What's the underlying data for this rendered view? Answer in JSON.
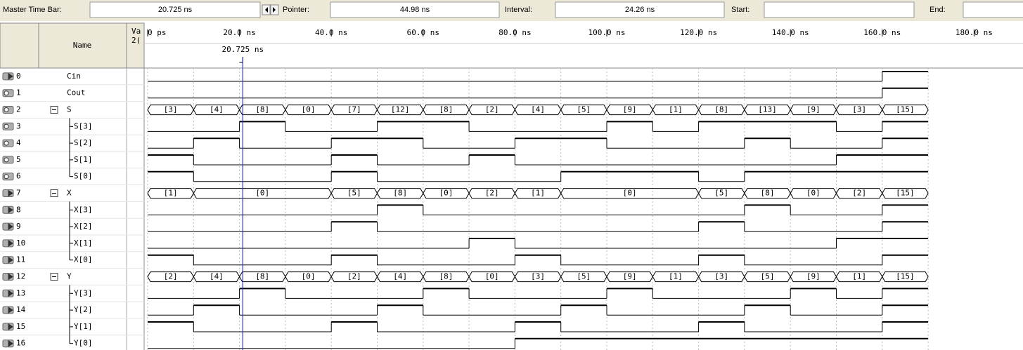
{
  "toolbar": {
    "master_label": "Master Time Bar:",
    "master_value": "20.725 ns",
    "pointer_label": "Pointer:",
    "pointer_value": "44.98 ns",
    "interval_label": "Interval:",
    "interval_value": "24.26 ns",
    "start_label": "Start:",
    "end_label": "End:"
  },
  "header": {
    "name": "Name",
    "value_1": "Va",
    "value_2": "2("
  },
  "timeline": {
    "ticks": [
      {
        "value": 0,
        "label": "0 ps"
      },
      {
        "value": 20,
        "label": "20.0 ns"
      },
      {
        "value": 40,
        "label": "40.0 ns"
      },
      {
        "value": 60,
        "label": "60.0 ns"
      },
      {
        "value": 80,
        "label": "80.0 ns"
      },
      {
        "value": 100,
        "label": "100.0 ns"
      },
      {
        "value": 120,
        "label": "120.0 ns"
      },
      {
        "value": 140,
        "label": "140.0 ns"
      },
      {
        "value": 160,
        "label": "160.0 ns"
      },
      {
        "value": 180,
        "label": "180.0 ns"
      }
    ],
    "cursor": {
      "value": 20.725,
      "label": "20.725 ns"
    },
    "edges": [
      0,
      10,
      20,
      30,
      40,
      50,
      60,
      70,
      80,
      90,
      100,
      110,
      120,
      130,
      140,
      150,
      160,
      170
    ]
  },
  "signals": [
    {
      "index": 0,
      "kind": "in",
      "name": "Cin",
      "values": [
        0,
        0,
        0,
        0,
        0,
        0,
        0,
        0,
        0,
        0,
        0,
        0,
        0,
        0,
        0,
        0,
        1
      ]
    },
    {
      "index": 1,
      "kind": "out",
      "name": "Cout",
      "values": [
        0,
        0,
        0,
        0,
        0,
        0,
        0,
        0,
        0,
        0,
        0,
        0,
        0,
        0,
        0,
        0,
        1
      ]
    },
    {
      "index": 2,
      "kind": "out",
      "name": "S",
      "group": true,
      "labels": [
        "[3]",
        "[4]",
        "[8]",
        "[0]",
        "[7]",
        "[12]",
        "[8]",
        "[2]",
        "[4]",
        "[5]",
        "[9]",
        "[1]",
        "[8]",
        "[13]",
        "[9]",
        "[3]",
        "[15]"
      ]
    },
    {
      "index": 3,
      "kind": "out",
      "name": "S[3]",
      "child": "mid",
      "values": [
        0,
        0,
        1,
        0,
        0,
        1,
        1,
        0,
        0,
        0,
        1,
        0,
        1,
        1,
        1,
        0,
        1
      ]
    },
    {
      "index": 4,
      "kind": "out",
      "name": "S[2]",
      "child": "mid",
      "values": [
        0,
        1,
        0,
        0,
        1,
        1,
        0,
        0,
        1,
        1,
        0,
        0,
        0,
        1,
        0,
        0,
        1
      ]
    },
    {
      "index": 5,
      "kind": "out",
      "name": "S[1]",
      "child": "mid",
      "values": [
        1,
        0,
        0,
        0,
        1,
        0,
        0,
        1,
        0,
        0,
        0,
        0,
        0,
        0,
        0,
        1,
        1
      ]
    },
    {
      "index": 6,
      "kind": "out",
      "name": "S[0]",
      "child": "last",
      "values": [
        1,
        0,
        0,
        0,
        1,
        0,
        0,
        0,
        0,
        1,
        1,
        1,
        0,
        1,
        1,
        1,
        1
      ]
    },
    {
      "index": 7,
      "kind": "in",
      "name": "X",
      "group": true,
      "labels": [
        "[1]",
        "[0]",
        null,
        null,
        "[5]",
        "[8]",
        "[0]",
        "[2]",
        "[1]",
        "[0]",
        null,
        null,
        "[5]",
        "[8]",
        "[0]",
        "[2]",
        "[15]"
      ]
    },
    {
      "index": 8,
      "kind": "in",
      "name": "X[3]",
      "child": "mid",
      "values": [
        0,
        0,
        0,
        0,
        0,
        1,
        0,
        0,
        0,
        0,
        0,
        0,
        0,
        1,
        0,
        0,
        1
      ]
    },
    {
      "index": 9,
      "kind": "in",
      "name": "X[2]",
      "child": "mid",
      "values": [
        0,
        0,
        0,
        0,
        1,
        0,
        0,
        0,
        0,
        0,
        0,
        0,
        1,
        0,
        0,
        0,
        1
      ]
    },
    {
      "index": 10,
      "kind": "in",
      "name": "X[1]",
      "child": "mid",
      "values": [
        0,
        0,
        0,
        0,
        0,
        0,
        0,
        1,
        0,
        0,
        0,
        0,
        0,
        0,
        0,
        1,
        1
      ]
    },
    {
      "index": 11,
      "kind": "in",
      "name": "X[0]",
      "child": "last",
      "values": [
        1,
        0,
        0,
        0,
        1,
        0,
        0,
        0,
        1,
        0,
        0,
        0,
        1,
        0,
        0,
        0,
        1
      ]
    },
    {
      "index": 12,
      "kind": "in",
      "name": "Y",
      "group": true,
      "labels": [
        "[2]",
        "[4]",
        "[8]",
        "[0]",
        "[2]",
        "[4]",
        "[8]",
        "[0]",
        "[3]",
        "[5]",
        "[9]",
        "[1]",
        "[3]",
        "[5]",
        "[9]",
        "[1]",
        "[15]"
      ]
    },
    {
      "index": 13,
      "kind": "in",
      "name": "Y[3]",
      "child": "mid",
      "values": [
        0,
        0,
        1,
        0,
        0,
        0,
        1,
        0,
        0,
        0,
        1,
        0,
        0,
        0,
        1,
        0,
        1
      ]
    },
    {
      "index": 14,
      "kind": "in",
      "name": "Y[2]",
      "child": "mid",
      "values": [
        0,
        1,
        0,
        0,
        0,
        1,
        0,
        0,
        0,
        1,
        0,
        0,
        0,
        1,
        0,
        0,
        1
      ]
    },
    {
      "index": 15,
      "kind": "in",
      "name": "Y[1]",
      "child": "mid",
      "values": [
        1,
        0,
        0,
        0,
        1,
        0,
        0,
        0,
        1,
        0,
        0,
        0,
        1,
        0,
        0,
        0,
        1
      ]
    },
    {
      "index": 16,
      "kind": "in",
      "name": "Y[0]",
      "child": "last",
      "values": [
        0,
        0,
        0,
        0,
        0,
        0,
        0,
        0,
        1,
        1,
        1,
        1,
        1,
        1,
        1,
        1,
        1
      ]
    }
  ]
}
